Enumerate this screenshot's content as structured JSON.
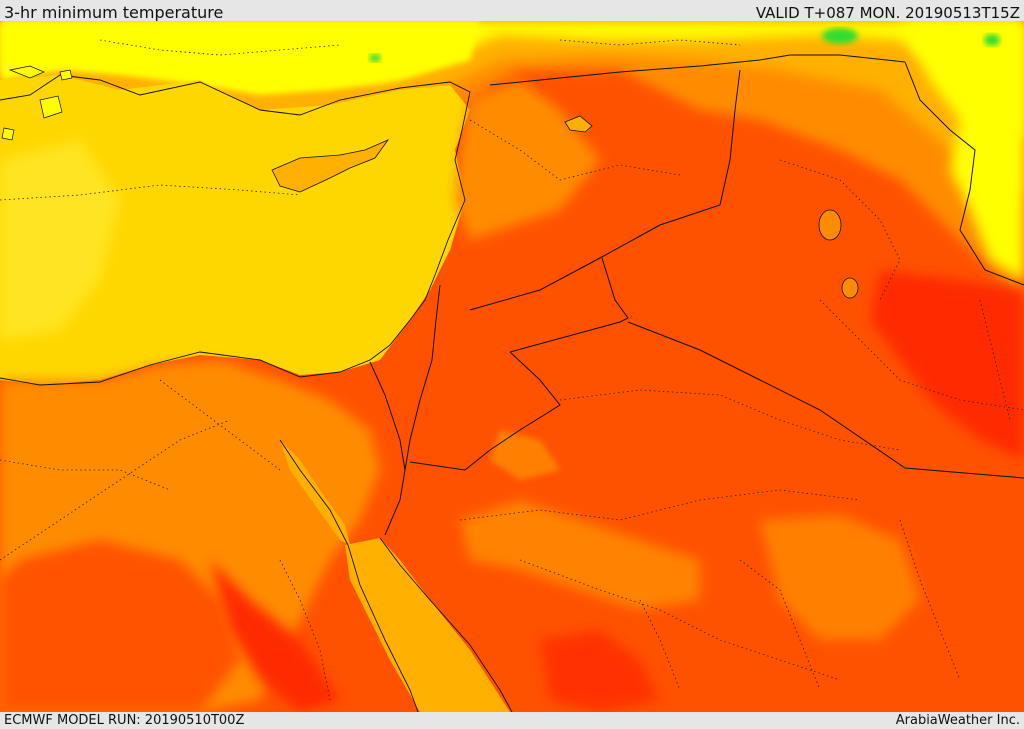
{
  "header": {
    "title": "3-hr minimum temperature",
    "valid": "VALID T+087 MON. 20190513T15Z"
  },
  "footer": {
    "model_run": "ECMWF MODEL RUN: 20190510T00Z",
    "credit": "ArabiaWeather Inc."
  },
  "palette": {
    "hot": "#ff2a00",
    "warm_red": "#ff5200",
    "warm": "#ff8c00",
    "mild": "#ffb000",
    "sea": "#ffd700",
    "cool": "#ffff00",
    "cold": "#33dd33",
    "border": "#111111"
  }
}
